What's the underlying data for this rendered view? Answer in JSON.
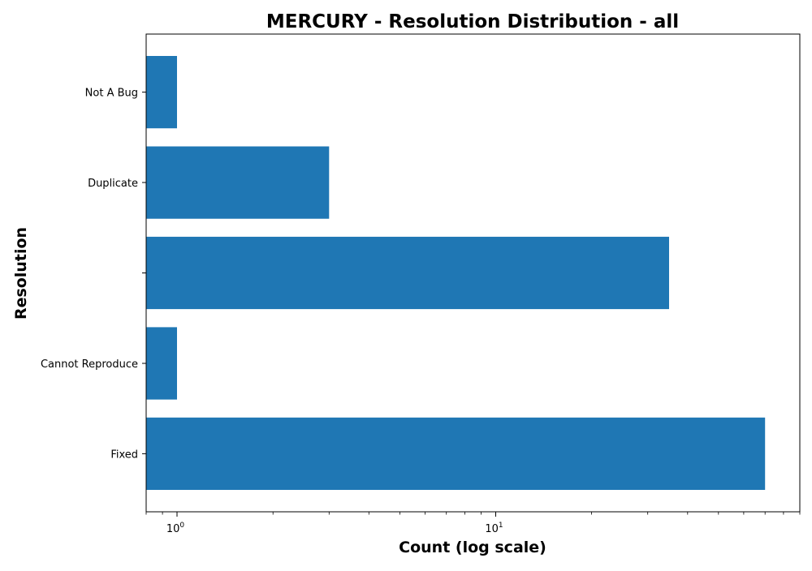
{
  "chart_data": {
    "type": "bar",
    "orientation": "horizontal",
    "title": "MERCURY - Resolution Distribution - all",
    "xlabel": "Count (log scale)",
    "ylabel": "Resolution",
    "x_scale": "log",
    "xlim": [
      0.8,
      90
    ],
    "x_tick_labels": [
      {
        "base": "10",
        "exp": "0",
        "value": 1
      },
      {
        "base": "10",
        "exp": "1",
        "value": 10
      }
    ],
    "categories": [
      "Fixed",
      "Cannot Reproduce",
      "",
      "Duplicate",
      "Not A Bug"
    ],
    "values": [
      70,
      1,
      35,
      3,
      1
    ],
    "bar_color": "#1f77b4",
    "grid": false,
    "legend": "none"
  }
}
